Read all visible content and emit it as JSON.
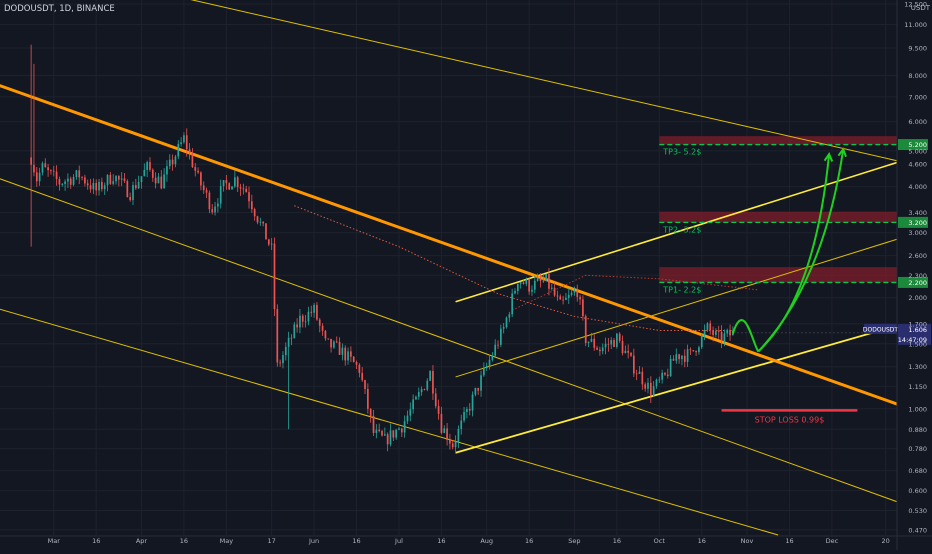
{
  "header": {
    "symbol_text": "DODOUSDT, 1D, BINANCE"
  },
  "price_axis": {
    "unit": "USDT"
  },
  "colors": {
    "background": "#131722",
    "grid": "#1e222d",
    "axis_text": "#b2b5be",
    "candle_up": "#26a69a",
    "candle_down": "#ef5350",
    "channel_main": "#ff9800",
    "channel_thin": "#e0c000",
    "upchannel": "#ffeb3b",
    "target_green": "#00c853",
    "zone_red": "#7f1d2b",
    "stop_red": "#f23645",
    "arrow_green": "#20d020",
    "last_price_badge": "#2a2e6e"
  },
  "chart_data": {
    "type": "candlestick",
    "title": "DODOUSDT, 1D, BINANCE",
    "y_scale": "log",
    "ylim": [
      0.455,
      12.5
    ],
    "y_ticks": [
      "12.500",
      "11.000",
      "9.500",
      "8.000",
      "7.000",
      "6.000",
      "5.000",
      "4.600",
      "4.000",
      "3.400",
      "3.000",
      "2.600",
      "2.300",
      "2.000",
      "1.700",
      "1.500",
      "1.300",
      "1.150",
      "1.000",
      "0.880",
      "0.780",
      "0.680",
      "0.600",
      "0.530",
      "0.470"
    ],
    "y_tick_values": [
      12.5,
      11.0,
      9.5,
      8.0,
      7.0,
      6.0,
      5.0,
      4.6,
      4.0,
      3.4,
      3.0,
      2.6,
      2.3,
      2.0,
      1.7,
      1.5,
      1.3,
      1.15,
      1.0,
      0.88,
      0.78,
      0.68,
      0.6,
      0.53,
      0.47
    ],
    "x_ticks": [
      "Mar",
      "16",
      "Apr",
      "16",
      "May",
      "17",
      "Jun",
      "16",
      "Jul",
      "16",
      "Aug",
      "16",
      "Sep",
      "16",
      "Oct",
      "16",
      "Nov",
      "16",
      "Dec",
      "20"
    ],
    "x_tick_dates": [
      "2021-03-01",
      "2021-03-16",
      "2021-04-01",
      "2021-04-16",
      "2021-05-01",
      "2021-05-17",
      "2021-06-01",
      "2021-06-16",
      "2021-07-01",
      "2021-07-16",
      "2021-08-01",
      "2021-08-16",
      "2021-09-01",
      "2021-09-16",
      "2021-10-01",
      "2021-10-16",
      "2021-11-01",
      "2021-11-16",
      "2021-12-01",
      "2021-12-20"
    ],
    "xlim": [
      "2021-02-10",
      "2021-12-24"
    ],
    "anchors": [
      [
        "2021-02-21",
        4.8
      ],
      [
        "2021-02-23",
        4.2
      ],
      [
        "2021-02-25",
        4.5
      ],
      [
        "2021-03-03",
        4.1
      ],
      [
        "2021-03-10",
        4.3
      ],
      [
        "2021-03-16",
        3.9
      ],
      [
        "2021-03-22",
        4.3
      ],
      [
        "2021-03-28",
        3.85
      ],
      [
        "2021-04-03",
        4.5
      ],
      [
        "2021-04-08",
        4.1
      ],
      [
        "2021-04-16",
        5.4
      ],
      [
        "2021-04-21",
        4.2
      ],
      [
        "2021-04-26",
        3.5
      ],
      [
        "2021-04-30",
        4.0
      ],
      [
        "2021-05-04",
        4.2
      ],
      [
        "2021-05-08",
        3.9
      ],
      [
        "2021-05-12",
        3.3
      ],
      [
        "2021-05-17",
        2.7
      ],
      [
        "2021-05-19",
        1.3
      ],
      [
        "2021-05-22",
        1.45
      ],
      [
        "2021-05-27",
        1.75
      ],
      [
        "2021-06-01",
        1.85
      ],
      [
        "2021-06-05",
        1.5
      ],
      [
        "2021-06-10",
        1.45
      ],
      [
        "2021-06-17",
        1.28
      ],
      [
        "2021-06-22",
        0.86
      ],
      [
        "2021-06-26",
        0.82
      ],
      [
        "2021-07-02",
        0.9
      ],
      [
        "2021-07-07",
        1.05
      ],
      [
        "2021-07-12",
        1.25
      ],
      [
        "2021-07-16",
        0.9
      ],
      [
        "2021-07-20",
        0.8
      ],
      [
        "2021-07-26",
        1.02
      ],
      [
        "2021-08-01",
        1.3
      ],
      [
        "2021-08-07",
        1.65
      ],
      [
        "2021-08-12",
        2.25
      ],
      [
        "2021-08-16",
        2.15
      ],
      [
        "2021-08-22",
        2.22
      ],
      [
        "2021-08-27",
        1.9
      ],
      [
        "2021-09-02",
        2.1
      ],
      [
        "2021-09-05",
        1.55
      ],
      [
        "2021-09-10",
        1.45
      ],
      [
        "2021-09-16",
        1.55
      ],
      [
        "2021-09-22",
        1.3
      ],
      [
        "2021-09-28",
        1.12
      ],
      [
        "2021-10-03",
        1.22
      ],
      [
        "2021-10-07",
        1.4
      ],
      [
        "2021-10-12",
        1.4
      ],
      [
        "2021-10-18",
        1.65
      ],
      [
        "2021-10-22",
        1.55
      ],
      [
        "2021-10-27",
        1.6
      ]
    ],
    "ma_line": [
      [
        "2021-05-25",
        3.55
      ],
      [
        "2021-07-01",
        2.75
      ],
      [
        "2021-08-05",
        2.05
      ],
      [
        "2021-09-01",
        1.78
      ],
      [
        "2021-10-01",
        1.63
      ],
      [
        "2021-10-27",
        1.63
      ]
    ],
    "ma_line2": [
      [
        "2021-08-10",
        1.85
      ],
      [
        "2021-09-05",
        2.3
      ],
      [
        "2021-10-01",
        2.25
      ],
      [
        "2021-11-05",
        2.1
      ]
    ],
    "trendlines": {
      "downtrend_main": [
        [
          "2021-01-25",
          8.3
        ],
        [
          "2021-12-24",
          1.03
        ]
      ],
      "down_upper": [
        [
          "2021-04-08",
          13.4
        ],
        [
          "2021-12-24",
          4.7
        ]
      ],
      "down_middle": [
        [
          "2021-01-25",
          4.65
        ],
        [
          "2021-12-24",
          0.56
        ]
      ],
      "down_lower": [
        [
          "2021-01-25",
          2.02
        ],
        [
          "2021-11-12",
          0.455
        ]
      ],
      "up_lower": [
        [
          "2021-07-21",
          0.76
        ],
        [
          "2021-12-24",
          1.68
        ]
      ],
      "up_upper": [
        [
          "2021-07-21",
          1.95
        ],
        [
          "2021-12-24",
          4.65
        ]
      ],
      "up_mid": [
        [
          "2021-07-21",
          1.22
        ],
        [
          "2021-12-24",
          2.88
        ]
      ]
    },
    "targets": [
      {
        "label": "TP1- 2.2$",
        "price": 2.2,
        "badge": "2.200",
        "zone": [
          2.2,
          2.42
        ]
      },
      {
        "label": "TP2- 3.2$",
        "price": 3.2,
        "badge": "3.200",
        "zone": [
          3.2,
          3.42
        ]
      },
      {
        "label": "TP3- 5.2$",
        "price": 5.2,
        "badge": "5.200",
        "zone": [
          5.2,
          5.48
        ]
      }
    ],
    "stop_loss": {
      "label": "STOP LOSS 0.99$",
      "price": 0.99,
      "from": "2021-10-23",
      "to": "2021-12-10"
    },
    "last_price": {
      "symbol": "DODOUSDT",
      "price": "1.606",
      "countdown": "14:47:09"
    },
    "arrows": [
      [
        [
          "2021-10-27",
          1.6
        ],
        [
          "2021-10-31",
          2.0
        ],
        [
          "2021-11-03",
          1.5
        ],
        [
          "2021-11-05",
          1.43
        ]
      ],
      [
        [
          "2021-11-05",
          1.43
        ],
        [
          "2021-11-25",
          2.0
        ],
        [
          "2021-11-30",
          4.9
        ]
      ],
      [
        [
          "2021-11-05",
          1.43
        ],
        [
          "2021-11-28",
          2.2
        ],
        [
          "2021-12-05",
          5.05
        ]
      ]
    ]
  }
}
